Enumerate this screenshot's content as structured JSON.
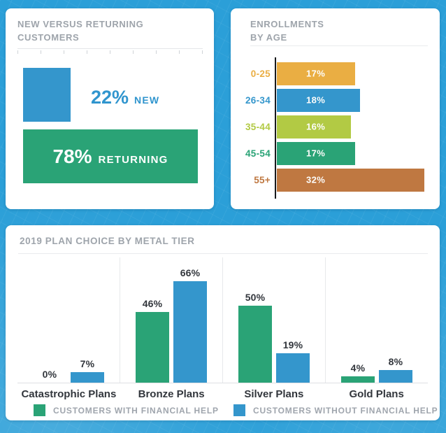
{
  "theme": {
    "background": "#2B9FD8",
    "card_background": "#FFFFFF",
    "title_gray": "#9EA4AB",
    "text_dark": "#32363C",
    "accent_blue": "#3496CC",
    "accent_green": "#2AA376"
  },
  "chart_data": [
    {
      "id": "new-vs-returning-customers",
      "type": "bar",
      "title": "NEW VERSUS RETURNING CUSTOMERS",
      "categories": [
        "NEW",
        "RETURNING"
      ],
      "values": [
        22,
        78
      ],
      "unit": "%",
      "colors": [
        "#3496CC",
        "#2AA376"
      ]
    },
    {
      "id": "enrollments-by-age",
      "type": "bar",
      "orientation": "horizontal",
      "title": "ENROLLMENTS BY AGE",
      "title_lines": [
        "ENROLLMENTS",
        "BY AGE"
      ],
      "categories": [
        "0-25",
        "26-34",
        "35-44",
        "45-54",
        "55+"
      ],
      "values": [
        17,
        18,
        16,
        17,
        32
      ],
      "unit": "%",
      "colors": [
        "#EAAE43",
        "#3496CC",
        "#B2CA44",
        "#2AA376",
        "#BF7841"
      ],
      "xlim": [
        0,
        35
      ],
      "grid": false
    },
    {
      "id": "plan-choice-by-metal-tier",
      "type": "bar",
      "title": "2019 PLAN CHOICE BY METAL TIER",
      "categories": [
        "Catastrophic Plans",
        "Bronze Plans",
        "Silver Plans",
        "Gold Plans"
      ],
      "series": [
        {
          "name": "CUSTOMERS WITH FINANCIAL HELP",
          "color": "#2AA376",
          "values": [
            0,
            46,
            50,
            4
          ]
        },
        {
          "name": "CUSTOMERS WITHOUT FINANCIAL HELP",
          "color": "#3496CC",
          "values": [
            7,
            66,
            19,
            8
          ]
        }
      ],
      "unit": "%",
      "ylim": [
        0,
        80
      ],
      "legend_position": "bottom",
      "grid": false
    }
  ]
}
